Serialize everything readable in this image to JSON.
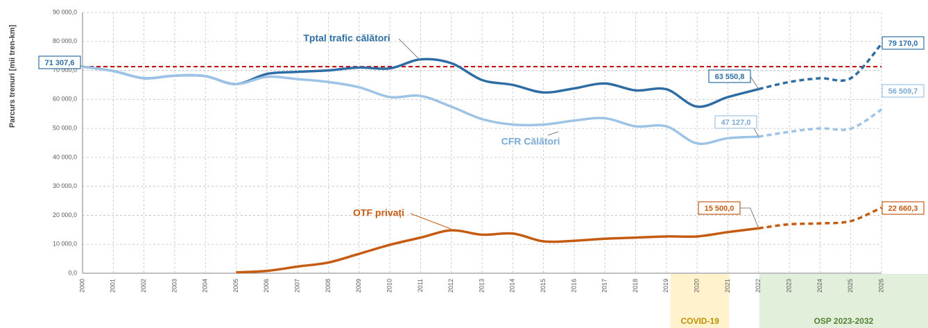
{
  "chart_data": {
    "type": "line",
    "y_axis_label": "Parcurs trenuri [mii tren-km]",
    "categories": [
      "2000",
      "2001",
      "2002",
      "2003",
      "2004",
      "2005",
      "2006",
      "2007",
      "2008",
      "2009",
      "2010",
      "2011",
      "2012",
      "2013",
      "2014",
      "2015",
      "2016",
      "2017",
      "2018",
      "2019",
      "2020",
      "2021",
      "2022",
      "2023",
      "2024",
      "2025",
      "2026"
    ],
    "forecast_from": "2022",
    "series": [
      {
        "name": "Tptal trafic călători",
        "color": "#2e6da4",
        "values": [
          71307.6,
          69800,
          67300,
          68200,
          68000,
          65300,
          68800,
          69500,
          70000,
          71000,
          70700,
          73800,
          72500,
          66700,
          65000,
          62400,
          63800,
          65500,
          63100,
          63500,
          57500,
          60800,
          63550.8,
          66000,
          67300,
          67300,
          79170.0
        ],
        "value_labels": [
          "71 307,6",
          null,
          null,
          null,
          null,
          null,
          null,
          null,
          null,
          null,
          null,
          null,
          null,
          null,
          null,
          null,
          null,
          null,
          null,
          null,
          null,
          null,
          "63 550,8",
          null,
          null,
          null,
          "79 170,0"
        ]
      },
      {
        "name": "CFR Călători",
        "color": "#9dc3e6",
        "values": [
          71307.6,
          69800,
          67300,
          68200,
          68000,
          65300,
          67800,
          67000,
          66000,
          64200,
          60800,
          61200,
          57500,
          53200,
          51300,
          51300,
          52700,
          53500,
          50700,
          50700,
          44800,
          46600,
          47127.0,
          48800,
          50000,
          49900,
          56509.7
        ],
        "value_labels": [
          null,
          null,
          null,
          null,
          null,
          null,
          null,
          null,
          null,
          null,
          null,
          null,
          null,
          null,
          null,
          null,
          null,
          null,
          null,
          null,
          null,
          null,
          "47 127,0",
          null,
          null,
          null,
          "56 509,7"
        ]
      },
      {
        "name": "OTF privați",
        "color": "#c55a11",
        "values": [
          null,
          null,
          null,
          null,
          null,
          300,
          800,
          2300,
          3700,
          6700,
          9800,
          12300,
          14800,
          13300,
          13700,
          11000,
          11200,
          11900,
          12300,
          12700,
          12700,
          14200,
          15500.0,
          16900,
          17200,
          18000,
          22660.3
        ],
        "value_labels": [
          null,
          null,
          null,
          null,
          null,
          null,
          null,
          null,
          null,
          null,
          null,
          null,
          null,
          null,
          null,
          null,
          null,
          null,
          null,
          null,
          null,
          null,
          "15 500,0",
          null,
          null,
          null,
          "22 660,3"
        ]
      }
    ],
    "reference_line": {
      "value": 71307.6,
      "color": "#c00000"
    },
    "bands": [
      {
        "label": "COVID-19",
        "from": "2019",
        "to": "2021",
        "color": "#fff2cc",
        "text_color": "#bf8f00"
      },
      {
        "label": "OSP 2023-2032",
        "from": "2022",
        "to": "2026",
        "color": "#e2efda",
        "text_color": "#548235"
      }
    ],
    "ylim": [
      0,
      90000
    ],
    "yticks": [
      {
        "value": 0,
        "label": "0,0"
      },
      {
        "value": 10000,
        "label": "10 000,0"
      },
      {
        "value": 20000,
        "label": "20 000,0"
      },
      {
        "value": 30000,
        "label": "30 000,0"
      },
      {
        "value": 40000,
        "label": "40 000,0"
      },
      {
        "value": 50000,
        "label": "50 000,0"
      },
      {
        "value": 60000,
        "label": "60 000,0"
      },
      {
        "value": 70000,
        "label": "70 000,0"
      },
      {
        "value": 80000,
        "label": "80 000,0"
      },
      {
        "value": 90000,
        "label": "90 000,0"
      }
    ],
    "grid": true
  }
}
